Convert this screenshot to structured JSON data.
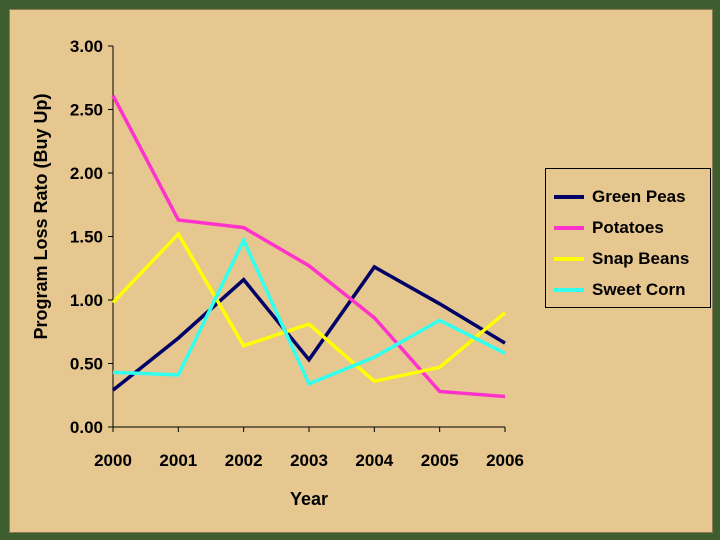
{
  "chart_data": {
    "type": "line",
    "title": "",
    "xlabel": "Year",
    "ylabel": "Program Loss Rato (Buy Up)",
    "categories": [
      "2000",
      "2001",
      "2002",
      "2003",
      "2004",
      "2005",
      "2006"
    ],
    "ylim": [
      0,
      3
    ],
    "yticks": [
      "0.00",
      "0.50",
      "1.00",
      "1.50",
      "2.00",
      "2.50",
      "3.00"
    ],
    "ytick_values": [
      0,
      0.5,
      1.0,
      1.5,
      2.0,
      2.5,
      3.0
    ],
    "grid": false,
    "legend_position": "right",
    "series": [
      {
        "name": "Green Peas",
        "color": "#000066",
        "values": [
          0.29,
          0.7,
          1.16,
          0.53,
          1.26,
          0.97,
          0.66
        ]
      },
      {
        "name": "Potatoes",
        "color": "#ff33cc",
        "values": [
          2.61,
          1.63,
          1.57,
          1.27,
          0.86,
          0.28,
          0.24
        ]
      },
      {
        "name": "Snap Beans",
        "color": "#ffff00",
        "values": [
          0.98,
          1.52,
          0.64,
          0.81,
          0.36,
          0.47,
          0.9
        ]
      },
      {
        "name": "Sweet Corn",
        "color": "#33ffee",
        "values": [
          0.43,
          0.41,
          1.47,
          0.34,
          0.55,
          0.84,
          0.58
        ]
      }
    ]
  }
}
